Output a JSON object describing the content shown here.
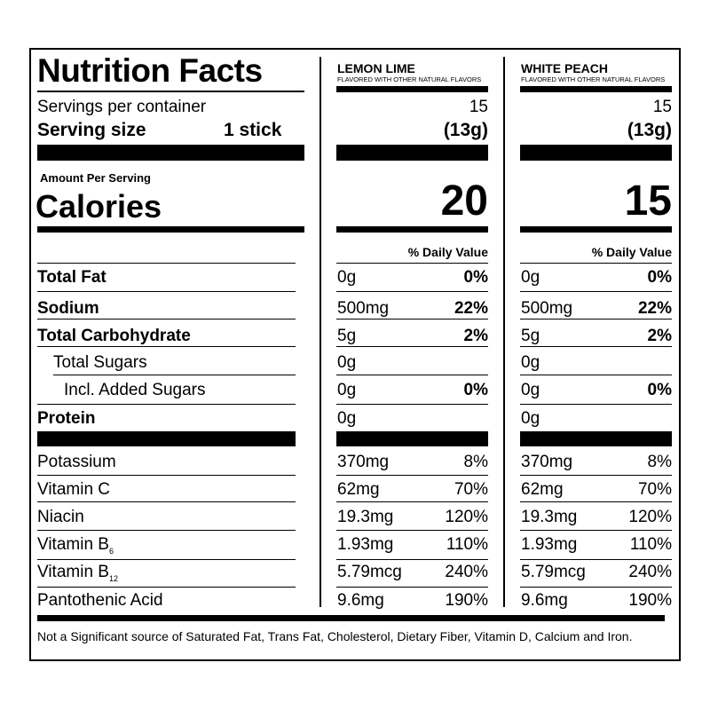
{
  "label": {
    "title": "Nutrition Facts",
    "servings_per_container_label": "Servings per container",
    "serving_size_label": "Serving size",
    "serving_size_value": "1 stick",
    "amount_per_serving": "Amount Per Serving",
    "calories_label": "Calories",
    "daily_value_header": "% Daily Value",
    "footnote": "Not a Significant source of Saturated Fat, Trans Fat, Cholesterol, Dietary Fiber, Vitamin D, Calcium and Iron."
  },
  "nutrient_labels": {
    "total_fat": "Total Fat",
    "sodium": "Sodium",
    "total_carbohydrate": "Total Carbohydrate",
    "total_sugars": "Total Sugars",
    "added_sugars": "Incl. Added Sugars",
    "protein": "Protein",
    "potassium": "Potassium",
    "vitamin_c": "Vitamin C",
    "niacin": "Niacin",
    "vitamin_b6": "Vitamin B",
    "vitamin_b6_sub": "6",
    "vitamin_b12": "Vitamin B",
    "vitamin_b12_sub": "12",
    "pantothenic_acid": "Pantothenic Acid"
  },
  "flavors": [
    {
      "name": "LEMON LIME",
      "subtitle": "FLAVORED WITH OTHER NATURAL FLAVORS",
      "servings": "15",
      "serving_weight": "(13g)",
      "calories": "20",
      "total_fat": {
        "amount": "0g",
        "dv": "0%"
      },
      "sodium": {
        "amount": "500mg",
        "dv": "22%"
      },
      "total_carbohydrate": {
        "amount": "5g",
        "dv": "2%"
      },
      "total_sugars": {
        "amount": "0g"
      },
      "added_sugars": {
        "amount": "0g",
        "dv": "0%"
      },
      "protein": {
        "amount": "0g"
      },
      "potassium": {
        "amount": "370mg",
        "dv": "8%"
      },
      "vitamin_c": {
        "amount": "62mg",
        "dv": "70%"
      },
      "niacin": {
        "amount": "19.3mg",
        "dv": "120%"
      },
      "vitamin_b6": {
        "amount": "1.93mg",
        "dv": "110%"
      },
      "vitamin_b12": {
        "amount": "5.79mcg",
        "dv": "240%"
      },
      "pantothenic_acid": {
        "amount": "9.6mg",
        "dv": "190%"
      }
    },
    {
      "name": "WHITE PEACH",
      "subtitle": "FLAVORED WITH OTHER NATURAL FLAVORS",
      "servings": "15",
      "serving_weight": "(13g)",
      "calories": "15",
      "total_fat": {
        "amount": "0g",
        "dv": "0%"
      },
      "sodium": {
        "amount": "500mg",
        "dv": "22%"
      },
      "total_carbohydrate": {
        "amount": "5g",
        "dv": "2%"
      },
      "total_sugars": {
        "amount": "0g"
      },
      "added_sugars": {
        "amount": "0g",
        "dv": "0%"
      },
      "protein": {
        "amount": "0g"
      },
      "potassium": {
        "amount": "370mg",
        "dv": "8%"
      },
      "vitamin_c": {
        "amount": "62mg",
        "dv": "70%"
      },
      "niacin": {
        "amount": "19.3mg",
        "dv": "120%"
      },
      "vitamin_b6": {
        "amount": "1.93mg",
        "dv": "110%"
      },
      "vitamin_b12": {
        "amount": "5.79mcg",
        "dv": "240%"
      },
      "pantothenic_acid": {
        "amount": "9.6mg",
        "dv": "190%"
      }
    }
  ]
}
